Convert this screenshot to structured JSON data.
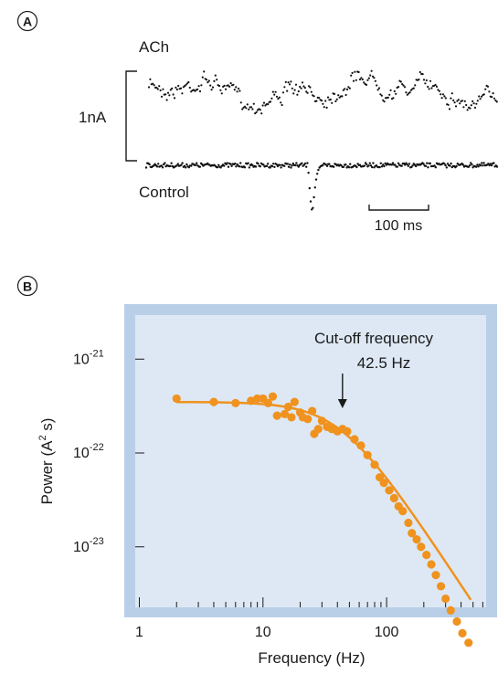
{
  "panels": {
    "a": {
      "letter": "A",
      "trace_top_label": "ACh",
      "trace_bottom_label": "Control",
      "current_scale_label": "1nA",
      "time_scale_label": "100 ms"
    },
    "b": {
      "letter": "B"
    }
  },
  "colors": {
    "data_orange": "#f0921e",
    "plot_border": "#b9cfe8",
    "plot_inner": "#dde8f4",
    "trace_black": "#111111"
  },
  "chart_data": {
    "type": "scatter",
    "xlabel": "Frequency (Hz)",
    "ylabel_main": "Power (A",
    "ylabel_sup": "2",
    "ylabel_tail": " s)",
    "x_scale": "log",
    "y_scale": "log",
    "xlim": [
      1,
      1000
    ],
    "ylim": [
      5e-25,
      3e-21
    ],
    "x_ticks": [
      {
        "value": 1,
        "label": "1"
      },
      {
        "value": 10,
        "label": "10"
      },
      {
        "value": 100,
        "label": "100"
      }
    ],
    "y_ticks": [
      {
        "value": 1e-21,
        "base": "10",
        "exp": "-21"
      },
      {
        "value": 1e-22,
        "base": "10",
        "exp": "-22"
      },
      {
        "value": 1e-23,
        "base": "10",
        "exp": "-23"
      }
    ],
    "annotation": {
      "line1": "Cut-off frequency",
      "line2": "42.5 Hz",
      "x": 42.5
    },
    "fit": {
      "type": "lorentzian",
      "plateau": 3.5e-22,
      "cutoff": 42.5,
      "x_range": [
        2,
        480
      ]
    },
    "series": [
      {
        "points": [
          [
            2,
            3.8e-22
          ],
          [
            4,
            3.5e-22
          ],
          [
            6,
            3.4e-22
          ],
          [
            8,
            3.6e-22
          ],
          [
            9,
            3.8e-22
          ],
          [
            10,
            3.8e-22
          ],
          [
            11,
            3.4e-22
          ],
          [
            12,
            4e-22
          ],
          [
            13,
            2.5e-22
          ],
          [
            15,
            2.6e-22
          ],
          [
            16,
            3.1e-22
          ],
          [
            17,
            2.4e-22
          ],
          [
            18,
            3.5e-22
          ],
          [
            20,
            2.7e-22
          ],
          [
            21,
            2.4e-22
          ],
          [
            23,
            2.3e-22
          ],
          [
            25,
            2.8e-22
          ],
          [
            26,
            1.6e-22
          ],
          [
            28,
            1.8e-22
          ],
          [
            30,
            2.2e-22
          ],
          [
            33,
            1.9e-22
          ],
          [
            36,
            1.8e-22
          ],
          [
            40,
            1.7e-22
          ],
          [
            44,
            1.8e-22
          ],
          [
            48,
            1.7e-22
          ],
          [
            55,
            1.4e-22
          ],
          [
            62,
            1.2e-22
          ],
          [
            70,
            9.5e-23
          ],
          [
            80,
            7.5e-23
          ],
          [
            88,
            5.5e-23
          ],
          [
            95,
            4.8e-23
          ],
          [
            105,
            4e-23
          ],
          [
            115,
            3.3e-23
          ],
          [
            125,
            2.7e-23
          ],
          [
            135,
            2.4e-23
          ],
          [
            150,
            1.8e-23
          ],
          [
            160,
            1.4e-23
          ],
          [
            175,
            1.2e-23
          ],
          [
            190,
            1e-23
          ],
          [
            210,
            8.2e-24
          ],
          [
            230,
            6.5e-24
          ],
          [
            250,
            5e-24
          ],
          [
            275,
            3.8e-24
          ],
          [
            300,
            2.8e-24
          ],
          [
            330,
            2.1e-24
          ],
          [
            370,
            1.6e-24
          ],
          [
            410,
            1.2e-24
          ],
          [
            460,
            9.5e-25
          ]
        ]
      }
    ]
  }
}
